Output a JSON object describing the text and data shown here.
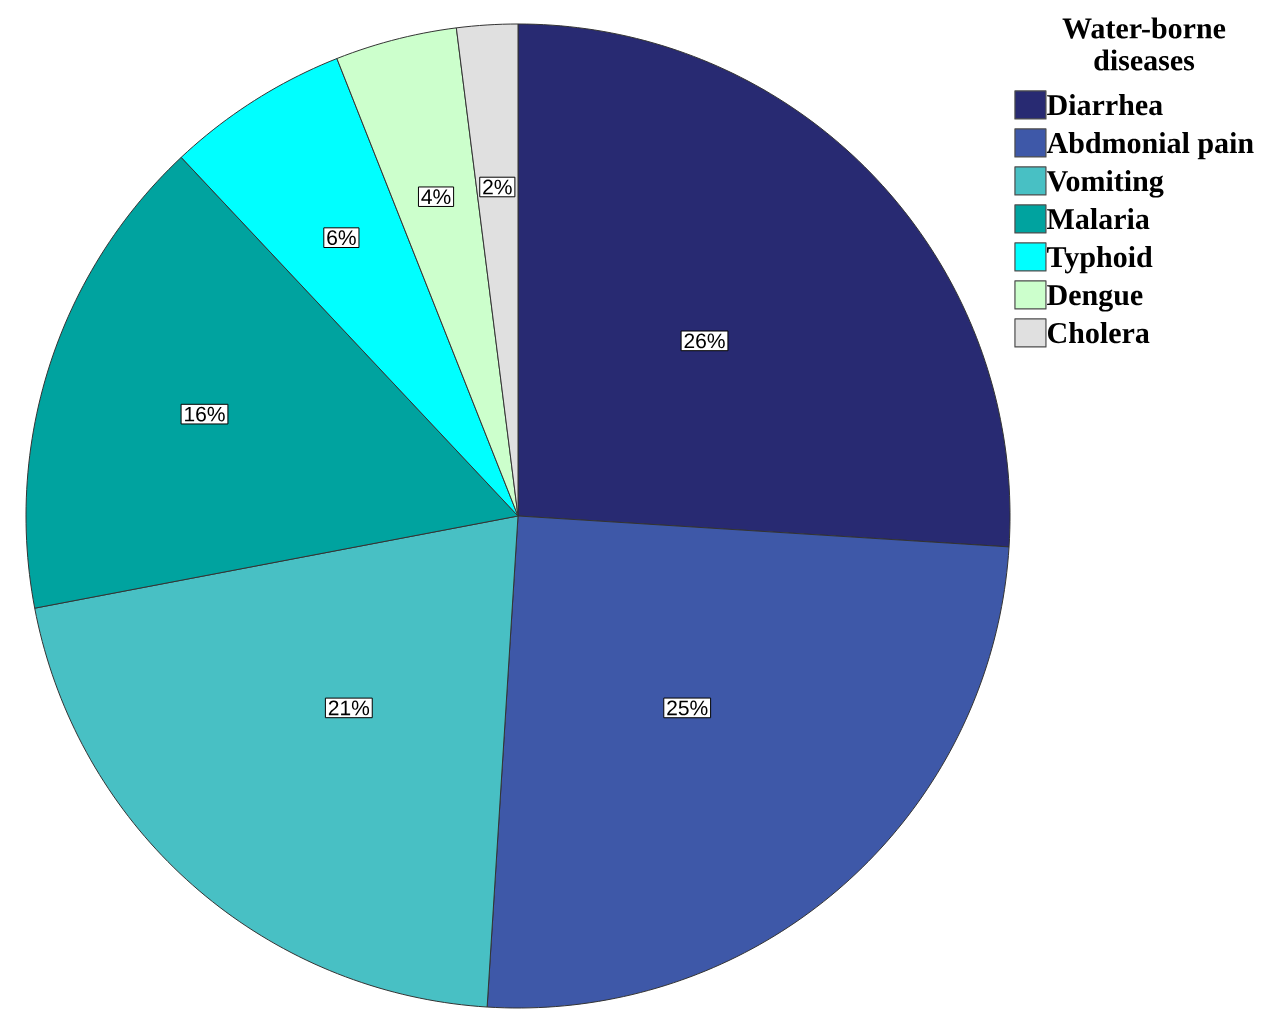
{
  "chart_data": {
    "type": "pie",
    "legend_title": "Water-borne diseases",
    "categories": [
      "Diarrhea",
      "Abdmonial pain",
      "Vomiting",
      "Malaria",
      "Typhoid",
      "Dengue",
      "Cholera"
    ],
    "values": [
      26,
      25,
      21,
      16,
      6,
      4,
      2
    ],
    "colors": [
      "#282a72",
      "#3e58a8",
      "#48c0c4",
      "#00a39f",
      "#00ffff",
      "#ccffcc",
      "#e0e0e0"
    ],
    "value_labels": [
      "26%",
      "25%",
      "21%",
      "16%",
      "6%",
      "4%",
      "2%"
    ],
    "legend": "top right"
  }
}
